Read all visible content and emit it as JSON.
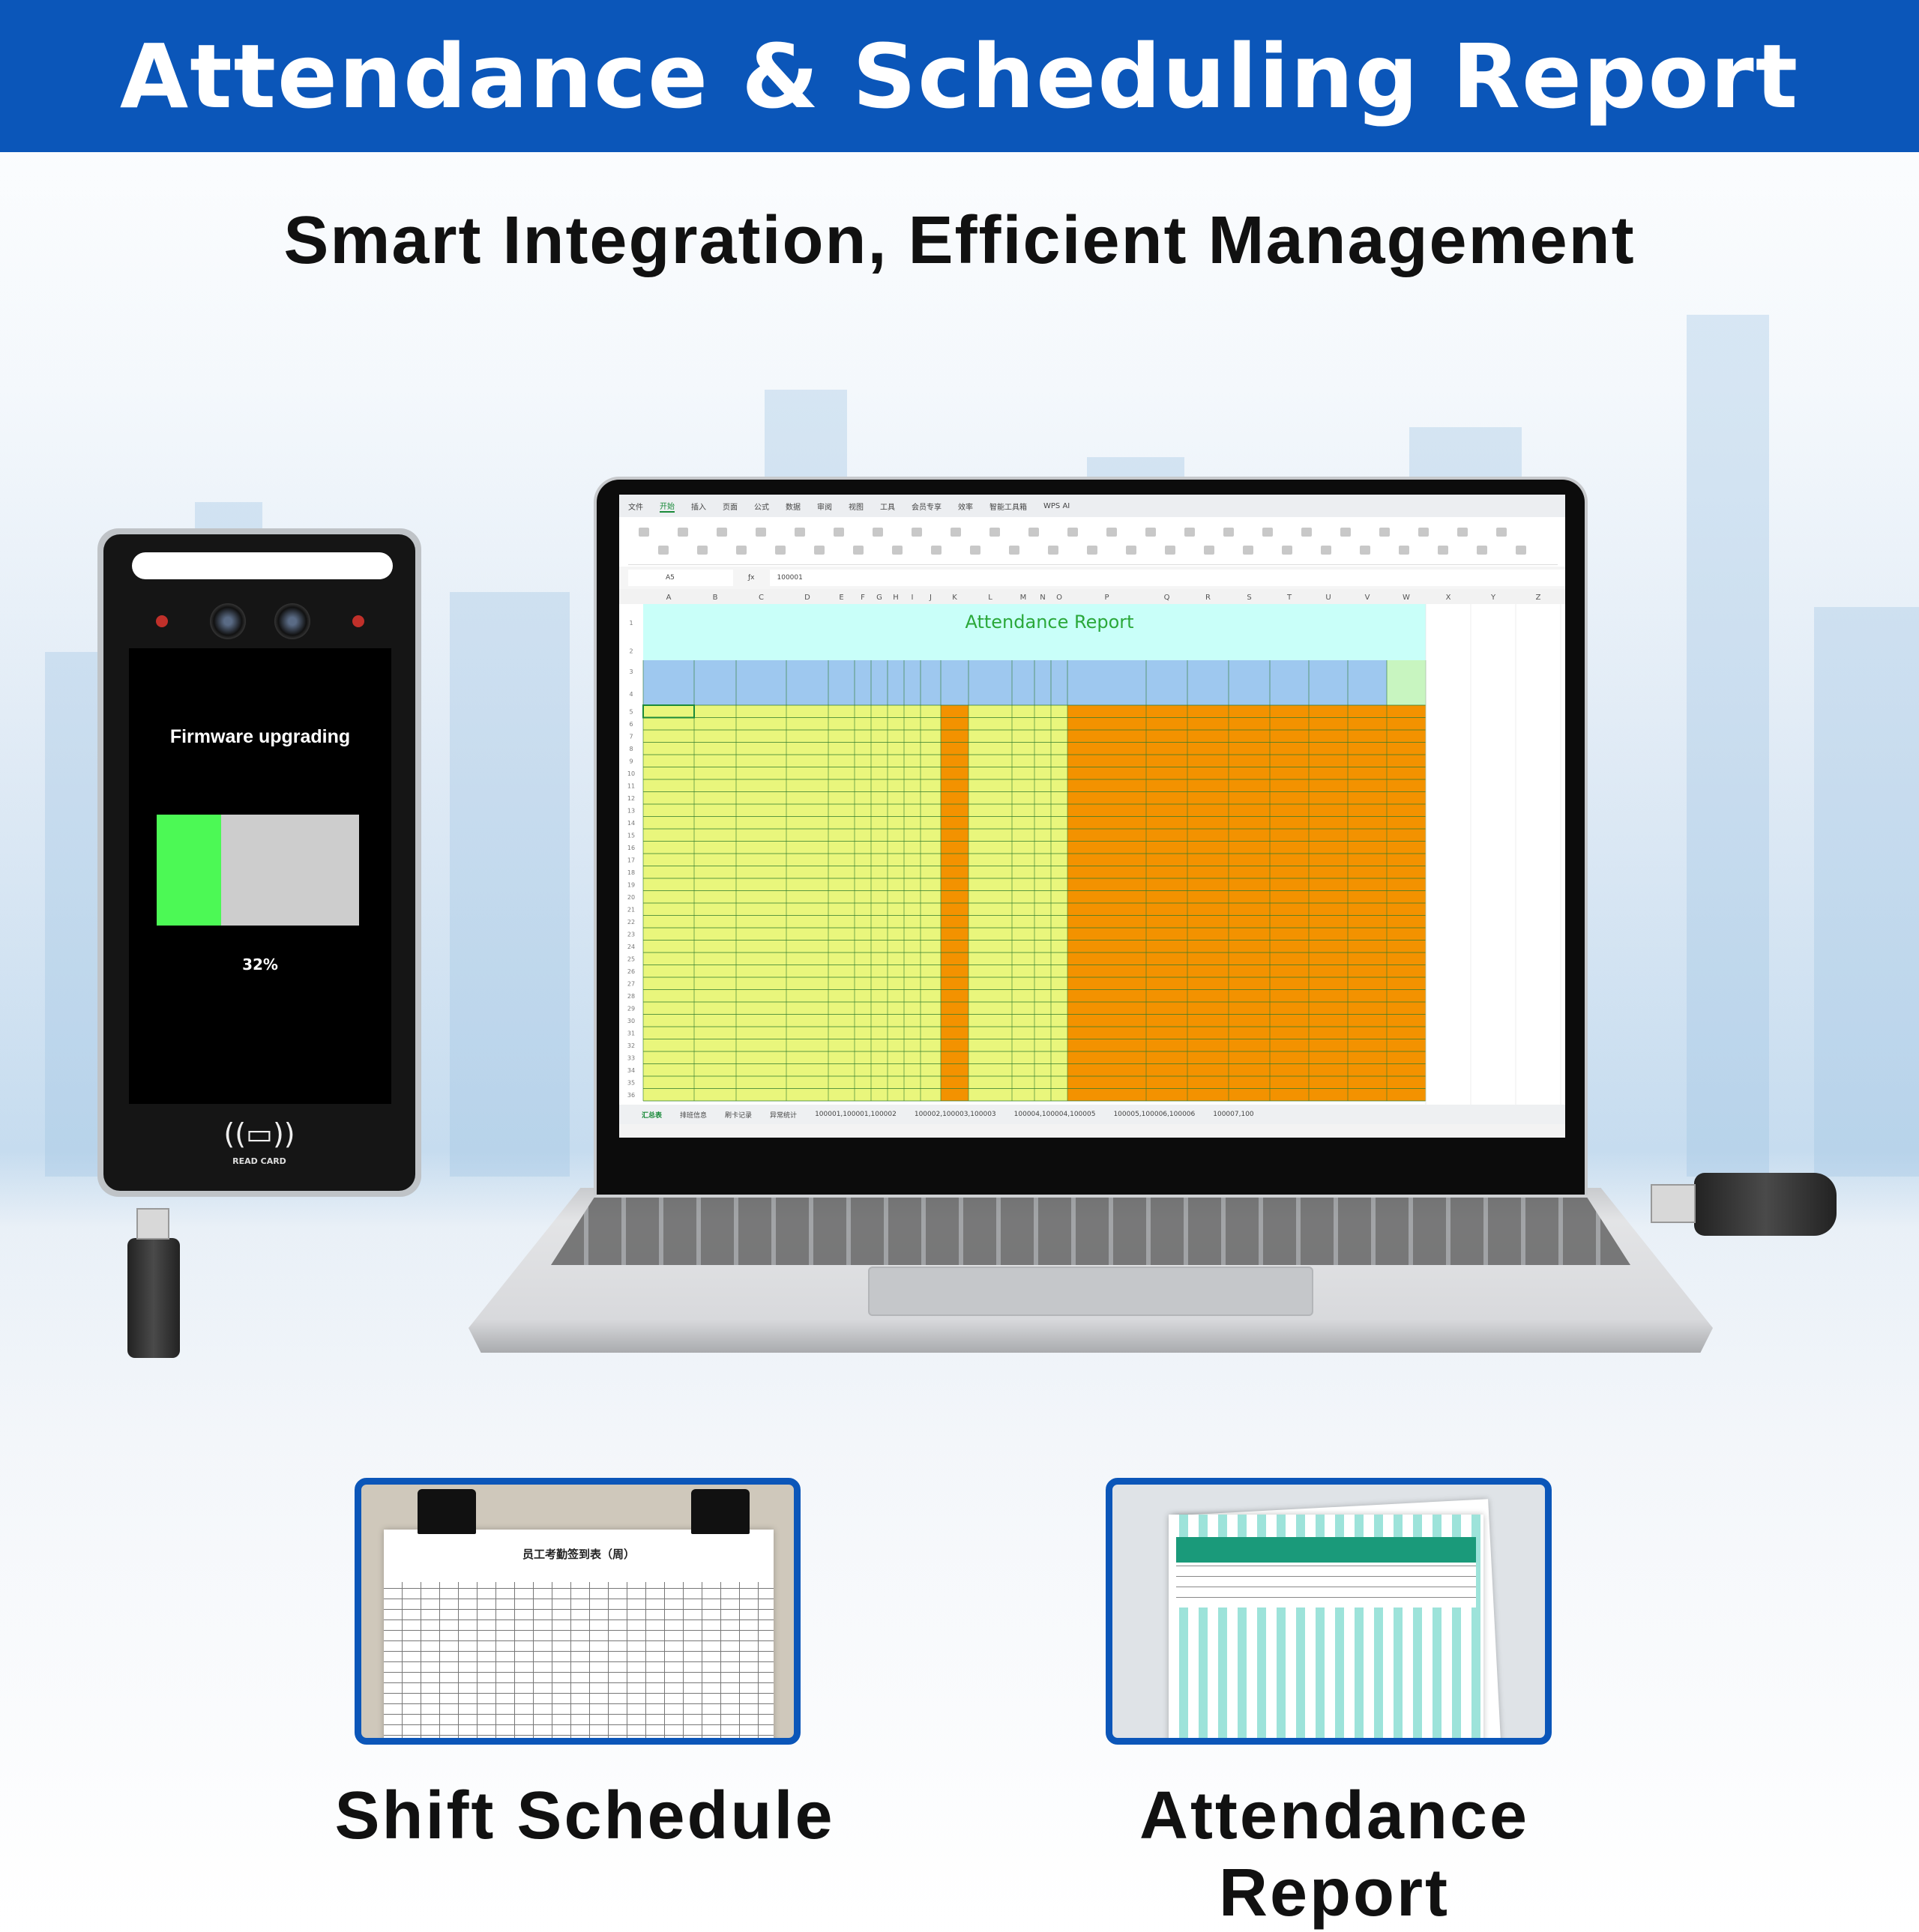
{
  "banner": {
    "title": "Attendance & Scheduling Report",
    "color": "#0b56b9"
  },
  "subtitle": "Smart Integration, Efficient Management",
  "device": {
    "status_text": "Firmware upgrading",
    "progress_percent": 32,
    "progress_label": "32%",
    "card_reader_label": "READ CARD",
    "icons": [
      "camera-icon",
      "ir-sensor-icon",
      "nfc-card-icon"
    ]
  },
  "spreadsheet": {
    "menu": [
      "文件",
      "开始",
      "插入",
      "页面",
      "公式",
      "数据",
      "审阅",
      "视图",
      "工具",
      "会员专享",
      "效率",
      "智能工具箱",
      "WPS AI"
    ],
    "active_menu": "开始",
    "cell_ref": "A5",
    "formula_value": "100001",
    "columns": [
      "A",
      "B",
      "C",
      "D",
      "E",
      "F",
      "G",
      "H",
      "I",
      "J",
      "K",
      "L",
      "M",
      "N",
      "O",
      "P",
      "Q",
      "R",
      "S",
      "T",
      "U",
      "V",
      "W",
      "X",
      "Y",
      "Z"
    ],
    "row_count": 36,
    "report_title": "Attendance Report",
    "sheet_tabs": [
      "汇总表",
      "排班信息",
      "刷卡记录",
      "异常统计",
      "100001,100001,100002",
      "100002,100003,100003",
      "100004,100004,100005",
      "100005,100006,100006",
      "100007,100"
    ],
    "active_tab": "汇总表",
    "colors": {
      "title_fill": "#c9fff9",
      "header_fill": "#9ec8ef",
      "row_fill": "#e9f67c",
      "orange_fill": "#f39200",
      "title_text": "#2aa83a"
    }
  },
  "cards": [
    {
      "label": "Shift Schedule",
      "doc_title": "员工考勤签到表（周）"
    },
    {
      "label": "Attendance Report"
    }
  ]
}
